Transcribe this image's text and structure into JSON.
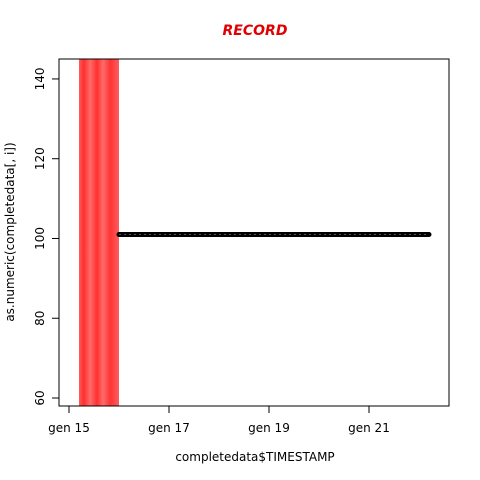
{
  "chart_data": {
    "type": "scatter",
    "title": "RECORD",
    "xlabel": "completedata$TIMESTAMP",
    "ylabel": "as.numeric(completedata[, i])",
    "title_color": "#e00000",
    "x_ticks": [
      "gen 15",
      "gen 17",
      "gen 19",
      "gen 21"
    ],
    "x_tick_values": [
      "2018-01-15",
      "2018-01-17",
      "2018-01-19",
      "2018-01-21"
    ],
    "x_range": [
      "2018-01-14.8",
      "2018-01-22.6"
    ],
    "y_ticks": [
      "60",
      "80",
      "100",
      "120",
      "140"
    ],
    "y_tick_values": [
      60,
      80,
      100,
      120,
      140
    ],
    "ylim": [
      58,
      145
    ],
    "series": [
      {
        "color": "#000000",
        "x_start": "2018-01-16.0",
        "x_end": "2018-01-22.2",
        "value": 101
      }
    ],
    "highlight_band": {
      "color": "#ff3030",
      "x_start": "2018-01-15.2",
      "x_end": "2018-01-16.0"
    },
    "grid": false,
    "legend": "none"
  }
}
